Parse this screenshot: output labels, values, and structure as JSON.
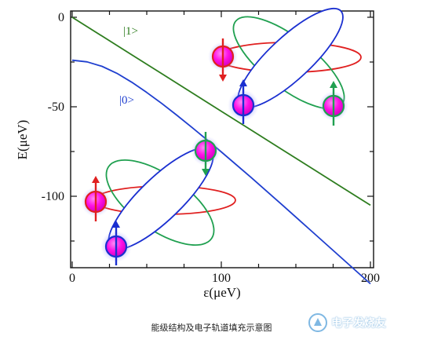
{
  "chart_data": {
    "type": "line",
    "title": "",
    "xlabel": "ε(μeV)",
    "ylabel": "E(μeV)",
    "xlim": [
      0,
      200
    ],
    "ylim": [
      -150,
      0
    ],
    "x_ticks": [
      "0",
      "100",
      "200"
    ],
    "y_ticks": [
      "0",
      "-50",
      "-100"
    ],
    "series": [
      {
        "name": "|1>",
        "color": "#2e7d1f",
        "x": [
          0,
          20,
          40,
          60,
          80,
          100,
          120,
          140,
          160,
          180,
          200
        ],
        "y": [
          0,
          -10.5,
          -21.0,
          -31.5,
          -42.0,
          -52.5,
          -63.0,
          -73.5,
          -84.0,
          -94.5,
          -105.0
        ]
      },
      {
        "name": "|0>",
        "color": "#1f3fcf",
        "x": [
          0,
          10,
          20,
          30,
          40,
          50,
          60,
          70,
          80,
          90,
          100,
          120,
          140,
          160,
          180,
          200
        ],
        "y": [
          -24,
          -24.9,
          -27.4,
          -31.3,
          -36.3,
          -42.0,
          -48.1,
          -54.6,
          -61.3,
          -68.2,
          -75.2,
          -89.5,
          -104.2,
          -119.1,
          -134.0,
          -148.9
        ]
      }
    ],
    "grid": false
  },
  "illustration": {
    "qubit_upper": {
      "name": "excited-state-qubit"
    },
    "qubit_lower": {
      "name": "ground-state-qubit"
    },
    "colors": {
      "red": "#e02020",
      "green": "#20a050",
      "blue": "#1a2fd0",
      "magenta": "#ff00e0"
    }
  },
  "caption": "能级结构及电子轨道填充示意图",
  "watermark": "电子发烧友"
}
